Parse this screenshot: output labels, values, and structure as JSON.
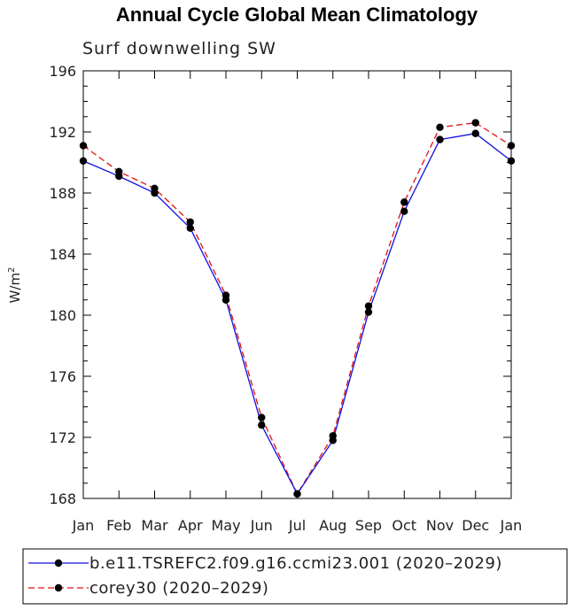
{
  "chart_data": {
    "type": "line",
    "title": "Annual Cycle Global Mean Climatology",
    "subtitle": "Surf downwelling SW",
    "ylabel_base": "W/m",
    "ylabel_sup": "2",
    "xlabel": "",
    "categories": [
      "Jan",
      "Feb",
      "Mar",
      "Apr",
      "May",
      "Jun",
      "Jul",
      "Aug",
      "Sep",
      "Oct",
      "Nov",
      "Dec",
      "Jan"
    ],
    "ylim": [
      168,
      196
    ],
    "yticks": [
      168,
      172,
      176,
      180,
      184,
      188,
      192,
      196
    ],
    "ytick_labels": [
      "168",
      "172",
      "176",
      "180",
      "184",
      "188",
      "192",
      "196"
    ],
    "series": [
      {
        "name": "b.e11.TSREFC2.f09.g16.ccmi23.001 (2020–2029)",
        "color": "#1010e0",
        "dash": "solid",
        "values": [
          190.1,
          189.1,
          188.0,
          185.7,
          181.0,
          172.8,
          168.3,
          171.8,
          180.2,
          186.8,
          191.5,
          191.9,
          190.1
        ]
      },
      {
        "name": "corey30 (2020–2029)",
        "color": "#e01010",
        "dash": "dashed",
        "values": [
          191.1,
          189.4,
          188.3,
          186.1,
          181.3,
          173.3,
          168.3,
          172.1,
          180.6,
          187.4,
          192.3,
          192.6,
          191.1
        ]
      }
    ],
    "grid": false,
    "legend_placement": "bottom"
  }
}
